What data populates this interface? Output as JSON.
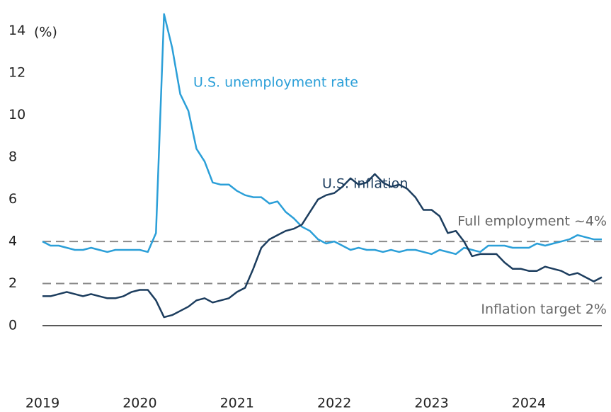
{
  "chart_data": {
    "type": "line",
    "y_label": "(%)",
    "categories": [
      "2019",
      null,
      null,
      null,
      null,
      null,
      null,
      null,
      null,
      null,
      null,
      null,
      "2020",
      null,
      null,
      null,
      null,
      null,
      null,
      null,
      null,
      null,
      null,
      null,
      "2021",
      null,
      null,
      null,
      null,
      null,
      null,
      null,
      null,
      null,
      null,
      null,
      "2022",
      null,
      null,
      null,
      null,
      null,
      null,
      null,
      null,
      null,
      null,
      null,
      "2023",
      null,
      null,
      null,
      null,
      null,
      null,
      null,
      null,
      null,
      null,
      null,
      "2024",
      null,
      null,
      null,
      null,
      null,
      null,
      null,
      null,
      null
    ],
    "series": [
      {
        "name": "U.S. unemployment rate",
        "color": "#2b9fd8",
        "values": [
          4.0,
          3.8,
          3.8,
          3.7,
          3.6,
          3.6,
          3.7,
          3.6,
          3.5,
          3.6,
          3.6,
          3.6,
          3.6,
          3.5,
          4.4,
          14.8,
          13.2,
          11.0,
          10.2,
          8.4,
          7.8,
          6.8,
          6.7,
          6.7,
          6.4,
          6.2,
          6.1,
          6.1,
          5.8,
          5.9,
          5.4,
          5.1,
          4.7,
          4.5,
          4.1,
          3.9,
          4.0,
          3.8,
          3.6,
          3.7,
          3.6,
          3.6,
          3.5,
          3.6,
          3.5,
          3.6,
          3.6,
          3.5,
          3.4,
          3.6,
          3.5,
          3.4,
          3.7,
          3.6,
          3.5,
          3.8,
          3.8,
          3.8,
          3.7,
          3.7,
          3.7,
          3.9,
          3.8,
          3.9,
          4.0,
          4.1,
          4.3,
          4.2,
          4.1,
          4.1
        ]
      },
      {
        "name": "U.S. inflation",
        "color": "#1c3d5e",
        "values": [
          1.4,
          1.4,
          1.5,
          1.6,
          1.5,
          1.4,
          1.5,
          1.4,
          1.3,
          1.3,
          1.4,
          1.6,
          1.7,
          1.7,
          1.2,
          0.4,
          0.5,
          0.7,
          0.9,
          1.2,
          1.3,
          1.1,
          1.2,
          1.3,
          1.6,
          1.8,
          2.7,
          3.7,
          4.1,
          4.3,
          4.5,
          4.6,
          4.8,
          5.4,
          6.0,
          6.2,
          6.3,
          6.6,
          7.0,
          6.7,
          6.8,
          7.2,
          6.8,
          6.6,
          6.7,
          6.5,
          6.1,
          5.5,
          5.5,
          5.2,
          4.4,
          4.5,
          4.0,
          3.3,
          3.4,
          3.4,
          3.4,
          3.0,
          2.7,
          2.7,
          2.6,
          2.6,
          2.8,
          2.7,
          2.6,
          2.4,
          2.5,
          2.3,
          2.1,
          2.3
        ]
      }
    ],
    "reference_lines": [
      {
        "value": 4,
        "label": "Full employment ~4%"
      },
      {
        "value": 2,
        "label": "Inflation target 2%"
      }
    ],
    "ylim": [
      0,
      15
    ],
    "yticks": [
      0,
      2,
      4,
      6,
      8,
      10,
      12,
      14
    ],
    "grid": false
  }
}
